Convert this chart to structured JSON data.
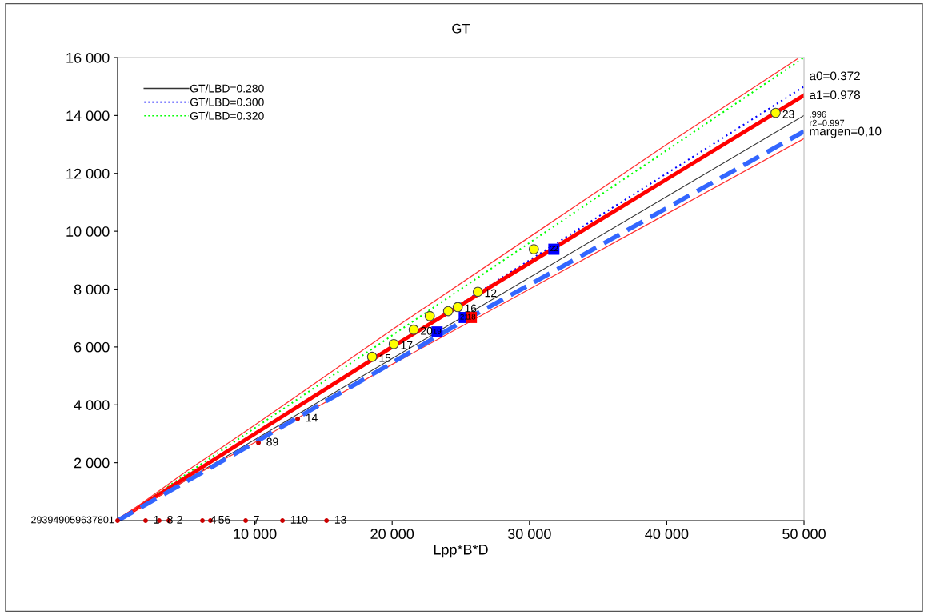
{
  "chart_data": {
    "type": "line",
    "title": "GT",
    "xlabel": "Lpp*B*D",
    "xlim": [
      0,
      50000
    ],
    "ylim": [
      0,
      16000
    ],
    "xticks": [
      {
        "value": 10000,
        "label": "10 000"
      },
      {
        "value": 20000,
        "label": "20 000"
      },
      {
        "value": 30000,
        "label": "30 000"
      },
      {
        "value": 40000,
        "label": "40 000"
      },
      {
        "value": 50000,
        "label": "50 000"
      }
    ],
    "yticks": [
      {
        "value": 2000,
        "label": "2 000"
      },
      {
        "value": 4000,
        "label": "4 000"
      },
      {
        "value": 6000,
        "label": "6 000"
      },
      {
        "value": 8000,
        "label": "8 000"
      },
      {
        "value": 10000,
        "label": "10 000"
      },
      {
        "value": 12000,
        "label": "12 000"
      },
      {
        "value": 14000,
        "label": "14 000"
      },
      {
        "value": 16000,
        "label": "16 000"
      }
    ],
    "grid": false,
    "legend": "top left",
    "series": [
      {
        "name": "GT/LBD=0.280",
        "color": "#333333",
        "line_style": "solid",
        "x": [
          0,
          50000
        ],
        "values": [
          0,
          14000
        ]
      },
      {
        "name": "GT/LBD=0.300",
        "color": "#0000ff",
        "line_style": "dotted",
        "x": [
          0,
          50000
        ],
        "values": [
          0,
          15000
        ]
      },
      {
        "name": "GT/LBD=0.320",
        "color": "#00ff00",
        "line_style": "dotted",
        "x": [
          0,
          50000
        ],
        "values": [
          0,
          16000
        ]
      },
      {
        "color": "#ff0000",
        "line_style": "solid",
        "x": [
          0,
          5000,
          10000,
          20000,
          30000,
          40000,
          50000
        ],
        "values": [
          0,
          1500,
          3000,
          6000,
          8900,
          11800,
          14700
        ]
      },
      {
        "color": "#ff3030",
        "line_style": "solid",
        "x": [
          0,
          5000,
          10000,
          20000,
          30000,
          40000,
          49500
        ],
        "values": [
          0,
          1700,
          3300,
          6600,
          9800,
          13000,
          15950
        ]
      },
      {
        "color": "#ff3030",
        "line_style": "solid",
        "x": [
          0,
          5000,
          10000,
          20000,
          30000,
          40000,
          50000
        ],
        "values": [
          0,
          1400,
          2700,
          5400,
          8000,
          10600,
          13200
        ]
      },
      {
        "color": "#3366ff",
        "line_style": "dashed",
        "x": [
          0,
          10000,
          20000,
          25000,
          30000,
          40000,
          50000
        ],
        "values": [
          0,
          2700,
          5450,
          6850,
          8150,
          10800,
          13450
        ]
      },
      {
        "type": "scatter",
        "marker": "circle",
        "color": "#ffff00",
        "x": [
          18540,
          20120,
          21570,
          22740,
          24780,
          26240,
          30320,
          47930
        ],
        "values": [
          5660,
          6100,
          6600,
          7070,
          7380,
          7910,
          9380,
          14090
        ]
      },
      {
        "type": "scatter",
        "marker": "circle",
        "color": "#ffff00",
        "x": [
          24080
        ],
        "values": [
          7240
        ]
      },
      {
        "type": "scatter",
        "marker": "square",
        "color": "#0000ff",
        "x": [
          23270,
          25250,
          31780
        ],
        "values": [
          6520,
          7020,
          9380
        ]
      },
      {
        "type": "scatter",
        "marker": "square",
        "color": "#ff0000",
        "x": [
          25770
        ],
        "values": [
          7020
        ]
      },
      {
        "type": "scatter",
        "marker": "circle",
        "color": "#cc0000",
        "x": [
          13120,
          10260,
          0,
          2040,
          3030,
          3730,
          6180,
          6760,
          9330,
          12010,
          15220
        ],
        "values": [
          3520,
          2690,
          0,
          0,
          0,
          0,
          0,
          0,
          0,
          0,
          0
        ]
      }
    ],
    "annotations": [
      {
        "text": "15",
        "x": 18540,
        "y": 5660
      },
      {
        "text": "17",
        "x": 20120,
        "y": 6100
      },
      {
        "text": "16",
        "x": 24780,
        "y": 7380
      },
      {
        "text": "12",
        "x": 26240,
        "y": 7910
      },
      {
        "text": "23",
        "x": 47930,
        "y": 14090
      },
      {
        "text": "22",
        "x": 31780,
        "y": 9380
      },
      {
        "text": "21",
        "x": 25250,
        "y": 7020
      },
      {
        "text": "18",
        "x": 25770,
        "y": 7020
      },
      {
        "text": "19",
        "x": 23270,
        "y": 6520
      },
      {
        "text": "20",
        "x": 21570,
        "y": 6600
      },
      {
        "text": "14",
        "x": 13120,
        "y": 3520
      },
      {
        "text": "89",
        "x": 10260,
        "y": 2690
      },
      {
        "text": "293949059637801",
        "x": 0,
        "y": 0
      },
      {
        "text": "1",
        "x": 2040,
        "y": 0
      },
      {
        "text": "8",
        "x": 3030,
        "y": 0
      },
      {
        "text": "2",
        "x": 3730,
        "y": 0
      },
      {
        "text": "4",
        "x": 6180,
        "y": 0
      },
      {
        "text": "56",
        "x": 6760,
        "y": 0
      },
      {
        "text": "7",
        "x": 9330,
        "y": 0
      },
      {
        "text": "110",
        "x": 12010,
        "y": 0
      },
      {
        "text": "13",
        "x": 15220,
        "y": 0
      },
      "a0=0.372",
      "a1=0.978",
      ".996",
      "r2=0.997",
      "margen=0,10"
    ]
  }
}
